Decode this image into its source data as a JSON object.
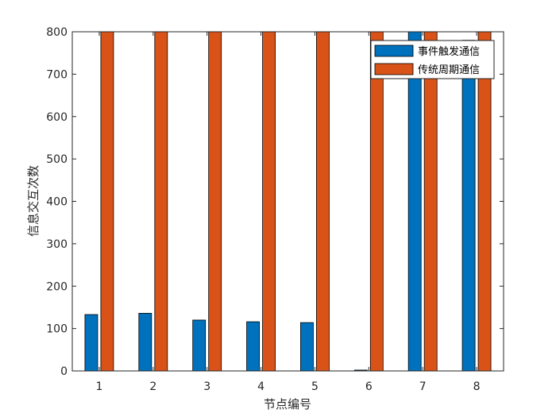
{
  "chart_data": {
    "type": "bar",
    "categories": [
      "1",
      "2",
      "3",
      "4",
      "5",
      "6",
      "7",
      "8"
    ],
    "series": [
      {
        "name": "事件触发通信",
        "values": [
          133,
          136,
          120,
          116,
          114,
          2,
          800,
          780
        ],
        "color": "#0072BD"
      },
      {
        "name": "传统周期通信",
        "values": [
          800,
          800,
          800,
          800,
          800,
          800,
          800,
          800
        ],
        "color": "#D95319"
      }
    ],
    "xlabel": "节点编号",
    "ylabel": "信息交互次数",
    "ylim": [
      0,
      800
    ],
    "yticks": [
      "0",
      "100",
      "200",
      "300",
      "400",
      "500",
      "600",
      "700",
      "800"
    ],
    "grid": false,
    "legend_position": "top-right"
  }
}
